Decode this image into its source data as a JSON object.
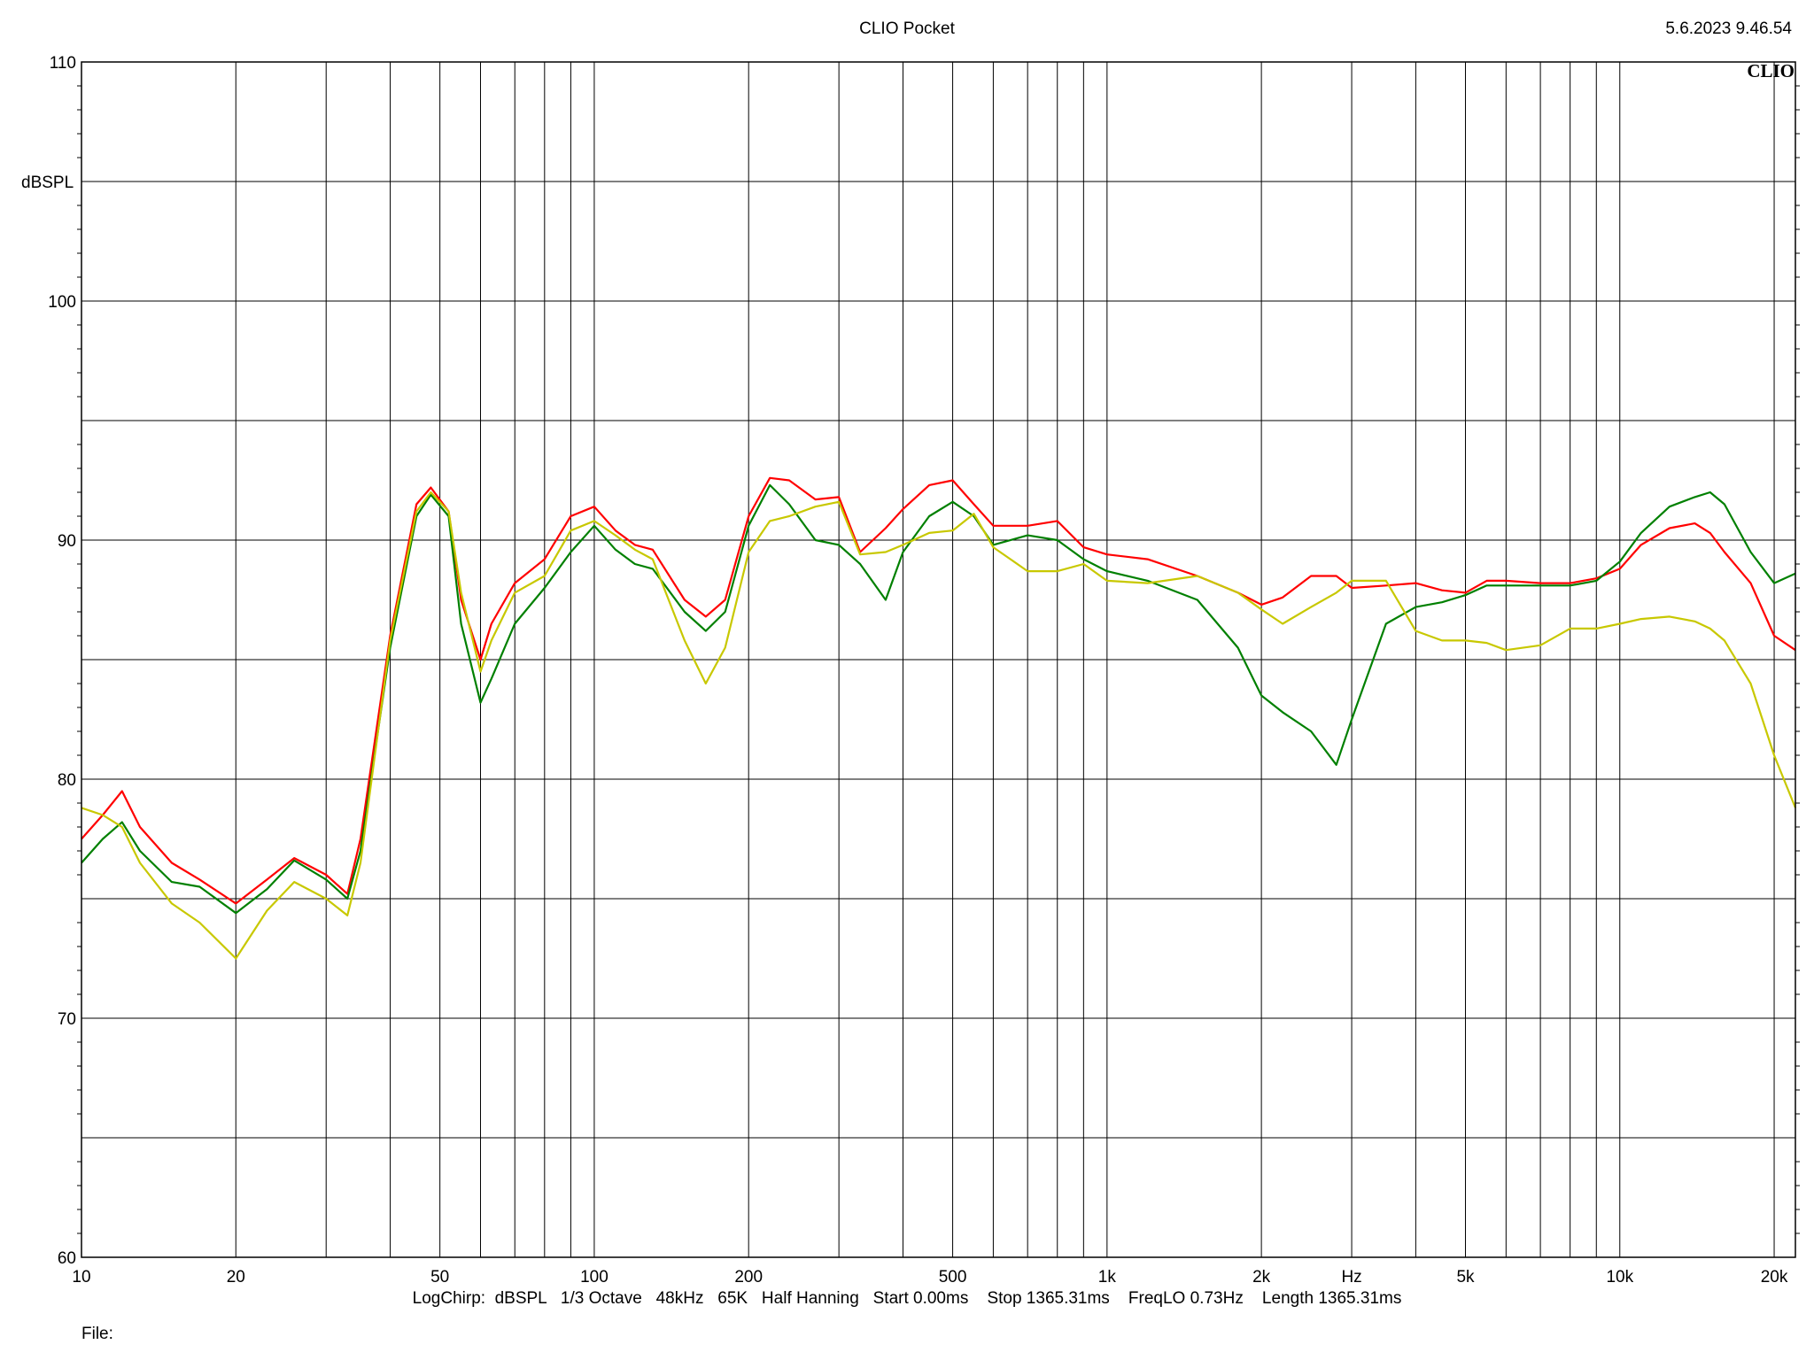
{
  "header": {
    "app_title": "CLIO Pocket",
    "timestamp": "5.6.2023 9.46.54"
  },
  "footer": {
    "settings": "LogChirp:  dBSPL   1/3 Octave   48kHz   65K   Half Hanning   Start 0.00ms    Stop 1365.31ms    FreqLO 0.73Hz    Length 1365.31ms",
    "file_label": "File:"
  },
  "chart_data": {
    "type": "line",
    "brand": "CLIO",
    "ylabel": "dBSPL",
    "xlabel": "Hz",
    "x_scale": "log",
    "xlim": [
      10,
      22000
    ],
    "ylim": [
      60,
      110
    ],
    "yticks": [
      60,
      70,
      80,
      90,
      100,
      110
    ],
    "xtick_labels": [
      {
        "value": 10,
        "label": "10"
      },
      {
        "value": 20,
        "label": "20"
      },
      {
        "value": 50,
        "label": "50"
      },
      {
        "value": 100,
        "label": "100"
      },
      {
        "value": 200,
        "label": "200"
      },
      {
        "value": 500,
        "label": "500"
      },
      {
        "value": 1000,
        "label": "1k"
      },
      {
        "value": 2000,
        "label": "2k"
      },
      {
        "value": 5000,
        "label": "5k"
      },
      {
        "value": 10000,
        "label": "10k"
      },
      {
        "value": 20000,
        "label": "20k"
      }
    ],
    "grid": true,
    "series": [
      {
        "color": "#ff0000",
        "x": [
          10,
          11,
          12,
          13,
          15,
          17,
          20,
          23,
          26,
          30,
          33,
          35,
          40,
          45,
          48,
          52,
          55,
          60,
          63,
          70,
          80,
          90,
          100,
          110,
          120,
          130,
          150,
          165,
          180,
          200,
          220,
          240,
          270,
          300,
          330,
          370,
          400,
          450,
          500,
          550,
          600,
          700,
          800,
          900,
          1000,
          1200,
          1500,
          1800,
          2000,
          2200,
          2500,
          2800,
          3000,
          3500,
          4000,
          4500,
          5000,
          5500,
          6000,
          7000,
          8000,
          9000,
          10000,
          11000,
          12500,
          14000,
          15000,
          16000,
          18000,
          20000,
          22000
        ],
        "y": [
          77.5,
          78.5,
          79.5,
          78,
          76.5,
          75.8,
          74.8,
          75.8,
          76.7,
          76,
          75.2,
          77.5,
          86,
          91.5,
          92.2,
          91.2,
          87.5,
          85,
          86.5,
          88.2,
          89.2,
          91,
          91.4,
          90.4,
          89.8,
          89.6,
          87.5,
          86.8,
          87.5,
          91,
          92.6,
          92.5,
          91.7,
          91.8,
          89.5,
          90.5,
          91.3,
          92.3,
          92.5,
          91.5,
          90.6,
          90.6,
          90.8,
          89.7,
          89.4,
          89.2,
          88.5,
          87.8,
          87.3,
          87.6,
          88.5,
          88.5,
          88,
          88.1,
          88.2,
          87.9,
          87.8,
          88.3,
          88.3,
          88.2,
          88.2,
          88.4,
          88.8,
          89.8,
          90.5,
          90.7,
          90.3,
          89.5,
          88.2,
          86,
          85.4
        ]
      },
      {
        "color": "#008000",
        "x": [
          10,
          11,
          12,
          13,
          15,
          17,
          20,
          23,
          26,
          30,
          33,
          35,
          40,
          45,
          48,
          52,
          55,
          60,
          63,
          70,
          80,
          90,
          100,
          110,
          120,
          130,
          150,
          165,
          180,
          200,
          220,
          240,
          270,
          300,
          330,
          370,
          400,
          450,
          500,
          550,
          600,
          700,
          800,
          900,
          1000,
          1200,
          1500,
          1800,
          2000,
          2200,
          2500,
          2800,
          3000,
          3500,
          4000,
          4500,
          5000,
          5500,
          6000,
          7000,
          8000,
          9000,
          10000,
          11000,
          12500,
          14000,
          15000,
          16000,
          18000,
          20000,
          22000
        ],
        "y": [
          76.5,
          77.5,
          78.2,
          77,
          75.7,
          75.5,
          74.4,
          75.4,
          76.6,
          75.8,
          75,
          77,
          85.5,
          91,
          91.9,
          91,
          86.5,
          83.2,
          84.2,
          86.5,
          88,
          89.5,
          90.6,
          89.6,
          89,
          88.8,
          87,
          86.2,
          87,
          90.6,
          92.3,
          91.5,
          90,
          89.8,
          89,
          87.5,
          89.5,
          91,
          91.6,
          91,
          89.8,
          90.2,
          90,
          89.2,
          88.7,
          88.3,
          87.5,
          85.5,
          83.5,
          82.8,
          82,
          80.6,
          82.5,
          86.5,
          87.2,
          87.4,
          87.7,
          88.1,
          88.1,
          88.1,
          88.1,
          88.3,
          89.1,
          90.3,
          91.4,
          91.8,
          92,
          91.5,
          89.5,
          88.2,
          88.6
        ]
      },
      {
        "color": "#c8c800",
        "x": [
          10,
          11,
          12,
          13,
          15,
          17,
          20,
          23,
          26,
          30,
          33,
          35,
          40,
          45,
          48,
          52,
          55,
          60,
          63,
          70,
          80,
          90,
          100,
          110,
          120,
          130,
          150,
          165,
          180,
          200,
          220,
          240,
          270,
          300,
          330,
          370,
          400,
          450,
          500,
          550,
          600,
          700,
          800,
          900,
          1000,
          1200,
          1500,
          1800,
          2000,
          2200,
          2500,
          2800,
          3000,
          3500,
          4000,
          4500,
          5000,
          5500,
          6000,
          7000,
          8000,
          9000,
          10000,
          11000,
          12500,
          14000,
          15000,
          16000,
          18000,
          20000,
          22000
        ],
        "y": [
          78.8,
          78.5,
          78,
          76.5,
          74.8,
          74,
          72.5,
          74.5,
          75.7,
          75,
          74.3,
          76.5,
          85.8,
          91.2,
          92,
          91.2,
          87.8,
          84.5,
          85.8,
          87.8,
          88.5,
          90.4,
          90.8,
          90.2,
          89.6,
          89.2,
          85.8,
          84,
          85.5,
          89.5,
          90.8,
          91,
          91.4,
          91.6,
          89.4,
          89.5,
          89.8,
          90.3,
          90.4,
          91.1,
          89.7,
          88.7,
          88.7,
          89,
          88.3,
          88.2,
          88.5,
          87.8,
          87.1,
          86.5,
          87.2,
          87.8,
          88.3,
          88.3,
          86.2,
          85.8,
          85.8,
          85.7,
          85.4,
          85.6,
          86.3,
          86.3,
          86.5,
          86.7,
          86.8,
          86.6,
          86.3,
          85.8,
          84,
          81,
          78.8
        ]
      }
    ]
  }
}
